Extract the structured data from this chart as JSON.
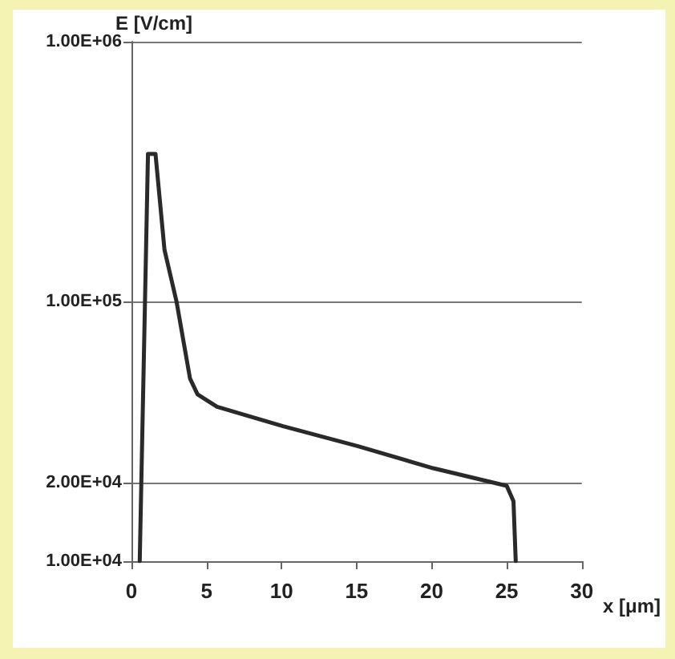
{
  "chart_data": {
    "type": "line",
    "ylabel": "E [V/cm]",
    "xlabel": "x [μm]",
    "log": "y",
    "grid": "y",
    "marker": "none",
    "line_style": "solid",
    "xlim": [
      0,
      30
    ],
    "xticks": [
      0,
      5,
      10,
      15,
      20,
      25,
      30
    ],
    "ylim": [
      10000,
      1000000
    ],
    "yticks": [
      {
        "value": 10000,
        "label": "1.00E+04"
      },
      {
        "value": 20000,
        "label": "2.00E+04"
      },
      {
        "value": 100000,
        "label": "1.00E+05"
      },
      {
        "value": 1000000,
        "label": "1.00E+06"
      }
    ],
    "series": [
      {
        "color": "#2a2a2a",
        "x": [
          0.55,
          1.1,
          1.6,
          2.2,
          3.0,
          3.9,
          4.4,
          5.7,
          10.1,
          15.1,
          20.1,
          25.0,
          25.45,
          25.6
        ],
        "values": [
          10000,
          370000,
          370000,
          158000,
          100000,
          50500,
          43900,
          39300,
          33100,
          27700,
          22800,
          19500,
          17000,
          10000
        ]
      }
    ]
  }
}
